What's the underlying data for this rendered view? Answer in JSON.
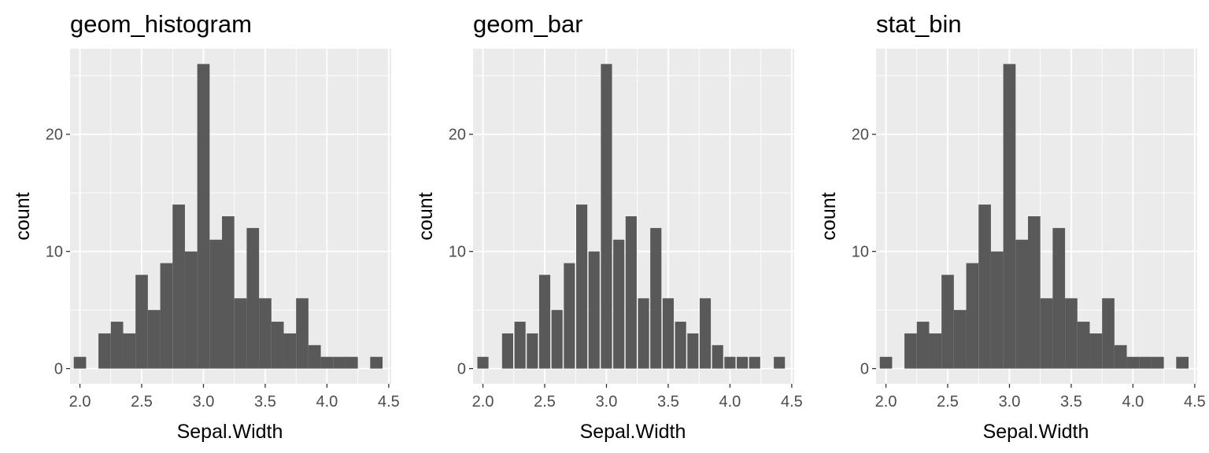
{
  "panels": [
    {
      "title": "geom_histogram",
      "xlabel": "Sepal.Width",
      "ylabel": "count"
    },
    {
      "title": "geom_bar",
      "xlabel": "Sepal.Width",
      "ylabel": "count"
    },
    {
      "title": "stat_bin",
      "xlabel": "Sepal.Width",
      "ylabel": "count"
    }
  ],
  "colors": {
    "panel_bg": "#ebebeb",
    "grid": "#ffffff",
    "bar_fill": "#595959",
    "tick_text": "#4d4d4d"
  },
  "chart_data": [
    {
      "type": "bar",
      "title": "geom_histogram",
      "xlabel": "Sepal.Width",
      "ylabel": "count",
      "grid": true,
      "bin_width": 0.1,
      "x": [
        2.0,
        2.1,
        2.2,
        2.3,
        2.4,
        2.5,
        2.6,
        2.7,
        2.8,
        2.9,
        3.0,
        3.1,
        3.2,
        3.3,
        3.4,
        3.5,
        3.6,
        3.7,
        3.8,
        3.9,
        4.0,
        4.1,
        4.2,
        4.3,
        4.4
      ],
      "values": [
        1,
        0,
        3,
        4,
        3,
        8,
        5,
        9,
        14,
        10,
        26,
        11,
        13,
        6,
        12,
        6,
        4,
        3,
        6,
        2,
        1,
        1,
        1,
        0,
        1
      ],
      "xlim": [
        1.92,
        4.52
      ],
      "ylim": [
        -1.3,
        27.3
      ],
      "xticks": [
        "2.0",
        "2.5",
        "3.0",
        "3.5",
        "4.0",
        "4.5"
      ],
      "yticks": [
        "0",
        "10",
        "20"
      ]
    },
    {
      "type": "bar",
      "title": "geom_bar",
      "xlabel": "Sepal.Width",
      "ylabel": "count",
      "grid": true,
      "bin_width": 0.1,
      "x": [
        2.0,
        2.1,
        2.2,
        2.3,
        2.4,
        2.5,
        2.6,
        2.7,
        2.8,
        2.9,
        3.0,
        3.1,
        3.2,
        3.3,
        3.4,
        3.5,
        3.6,
        3.7,
        3.8,
        3.9,
        4.0,
        4.1,
        4.2,
        4.3,
        4.4
      ],
      "values": [
        1,
        0,
        3,
        4,
        3,
        8,
        5,
        9,
        14,
        10,
        26,
        11,
        13,
        6,
        12,
        6,
        4,
        3,
        6,
        2,
        1,
        1,
        1,
        0,
        1
      ],
      "xlim": [
        1.92,
        4.52
      ],
      "ylim": [
        -1.3,
        27.3
      ],
      "xticks": [
        "2.0",
        "2.5",
        "3.0",
        "3.5",
        "4.0",
        "4.5"
      ],
      "yticks": [
        "0",
        "10",
        "20"
      ]
    },
    {
      "type": "bar",
      "title": "stat_bin",
      "xlabel": "Sepal.Width",
      "ylabel": "count",
      "grid": true,
      "bin_width": 0.1,
      "x": [
        2.0,
        2.1,
        2.2,
        2.3,
        2.4,
        2.5,
        2.6,
        2.7,
        2.8,
        2.9,
        3.0,
        3.1,
        3.2,
        3.3,
        3.4,
        3.5,
        3.6,
        3.7,
        3.8,
        3.9,
        4.0,
        4.1,
        4.2,
        4.3,
        4.4
      ],
      "values": [
        1,
        0,
        3,
        4,
        3,
        8,
        5,
        9,
        14,
        10,
        26,
        11,
        13,
        6,
        12,
        6,
        4,
        3,
        6,
        2,
        1,
        1,
        1,
        0,
        1
      ],
      "xlim": [
        1.92,
        4.52
      ],
      "ylim": [
        -1.3,
        27.3
      ],
      "xticks": [
        "2.0",
        "2.5",
        "3.0",
        "3.5",
        "4.0",
        "4.5"
      ],
      "yticks": [
        "0",
        "10",
        "20"
      ]
    }
  ]
}
